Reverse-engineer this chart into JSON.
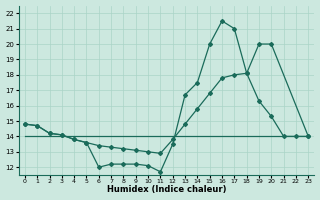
{
  "xlabel": "Humidex (Indice chaleur)",
  "bg_color": "#cce8df",
  "line_color": "#1a6b5a",
  "grid_color": "#aad4c8",
  "xlim": [
    -0.5,
    23.5
  ],
  "ylim": [
    11.5,
    22.5
  ],
  "xticks": [
    0,
    1,
    2,
    3,
    4,
    5,
    6,
    7,
    8,
    9,
    10,
    11,
    12,
    13,
    14,
    15,
    16,
    17,
    18,
    19,
    20,
    21,
    22,
    23
  ],
  "yticks": [
    12,
    13,
    14,
    15,
    16,
    17,
    18,
    19,
    20,
    21,
    22
  ],
  "line1_x": [
    0,
    23
  ],
  "line1_y": [
    14,
    14
  ],
  "line2_x": [
    0,
    1,
    2,
    3,
    4,
    5,
    6,
    7,
    8,
    9,
    10,
    11,
    12,
    13,
    14,
    15,
    16,
    17,
    18,
    19,
    20,
    21,
    22,
    23
  ],
  "line2_y": [
    14.8,
    14.7,
    14.2,
    14.1,
    13.8,
    13.6,
    12.0,
    12.2,
    12.2,
    12.2,
    12.1,
    11.7,
    13.5,
    16.7,
    17.5,
    20.0,
    21.5,
    21.0,
    18.1,
    16.3,
    15.3,
    14.0,
    14.0,
    14.0
  ],
  "line3_x": [
    0,
    1,
    2,
    3,
    4,
    5,
    6,
    7,
    8,
    9,
    10,
    11,
    12,
    13,
    14,
    15,
    16,
    17,
    18,
    19,
    20,
    23
  ],
  "line3_y": [
    14.8,
    14.7,
    14.2,
    14.1,
    13.8,
    13.6,
    13.4,
    13.3,
    13.2,
    13.1,
    13.0,
    12.9,
    13.8,
    14.8,
    15.8,
    16.8,
    17.8,
    18.0,
    18.1,
    20.0,
    20.0,
    14.0
  ]
}
